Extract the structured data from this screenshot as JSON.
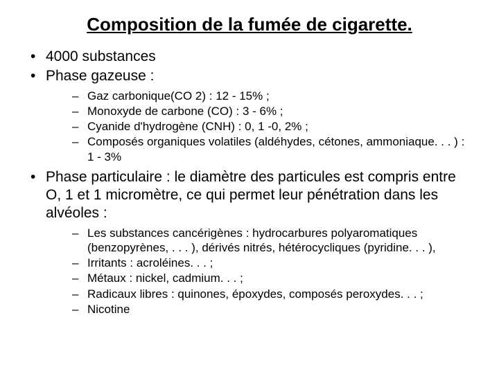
{
  "title": "Composition de la fumée de cigarette.",
  "bullets": {
    "b1": "4000 substances",
    "b2": "Phase gazeuse :",
    "b2_sub": {
      "s1": "Gaz carbonique(CO 2) : 12 - 15% ;",
      "s2": "Monoxyde de carbone (CO) : 3 - 6% ;",
      "s3": "Cyanide d'hydrogène (CNH) : 0, 1 -0, 2% ;",
      "s4": "Composés organiques volatiles (aldéhydes, cétones, ammoniaque. . . ) : 1 - 3%"
    },
    "b3": "Phase particulaire : le diamètre des particules est compris entre O, 1 et 1 micromètre, ce qui permet leur pénétration dans les alvéoles :",
    "b3_sub": {
      "s1": "Les substances cancérigènes : hydrocarbures polyaromatiques (benzopyrènes, . . . ), dérivés nitrés, hétérocycliques (pyridine. . . ),",
      "s2": "Irritants : acroléines. . . ;",
      "s3": " Métaux : nickel, cadmium. . . ;",
      "s4": " Radicaux libres : quinones, époxydes, composés peroxydes. . . ;",
      "s5": "Nicotine"
    }
  }
}
